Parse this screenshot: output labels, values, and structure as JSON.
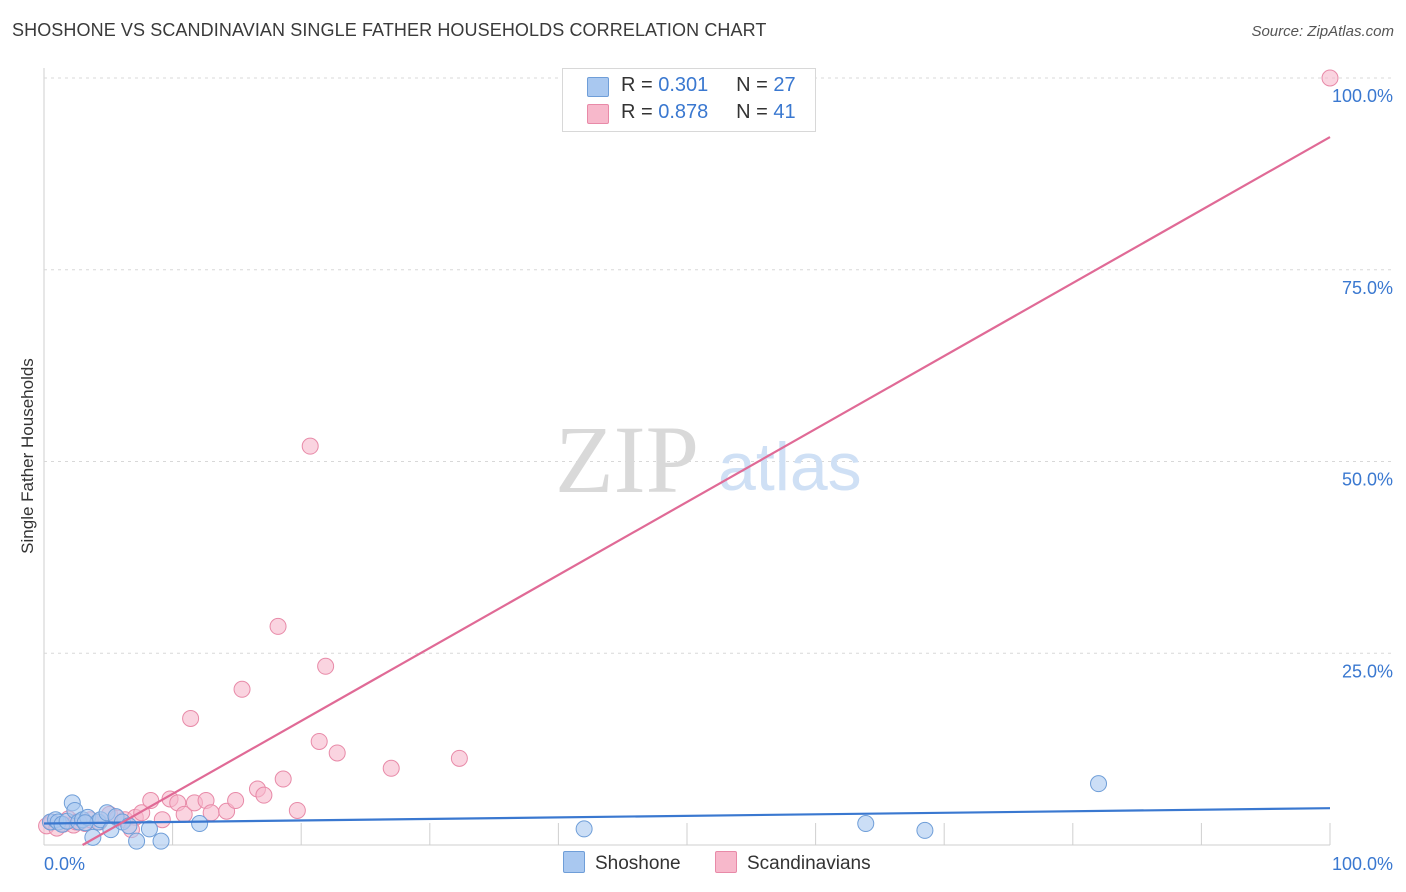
{
  "title": "SHOSHONE VS SCANDINAVIAN SINGLE FATHER HOUSEHOLDS CORRELATION CHART",
  "source": "Source: ZipAtlas.com",
  "watermark": {
    "zip": "ZIP",
    "atlas": "atlas"
  },
  "colors": {
    "shoshone_fill": "#a9c8f0",
    "shoshone_stroke": "#6f9ed8",
    "shoshone_line": "#3a78d0",
    "scand_fill": "#f7b8cb",
    "scand_stroke": "#e88aa8",
    "scand_line": "#e06a96",
    "axis_label": "#3a78d0",
    "grid": "#d8d8d8"
  },
  "legend": {
    "rows": [
      {
        "r_label": "R =",
        "r_value": "0.301",
        "n_label": "N =",
        "n_value": "27"
      },
      {
        "r_label": "R =",
        "r_value": "0.878",
        "n_label": "N =",
        "n_value": "41"
      }
    ]
  },
  "bottom_legend": {
    "shoshone": "Shoshone",
    "scandinavians": "Scandinavians"
  },
  "chart_data": {
    "type": "scatter",
    "title": "SHOSHONE VS SCANDINAVIAN SINGLE FATHER HOUSEHOLDS CORRELATION CHART",
    "xlabel": "",
    "ylabel": "Single Father Households",
    "xlim": [
      0,
      100
    ],
    "ylim": [
      0,
      100
    ],
    "x_tick_labels": [
      "0.0%",
      "100.0%"
    ],
    "y_ticks": [
      25,
      50,
      75,
      100
    ],
    "y_tick_labels": [
      "25.0%",
      "50.0%",
      "75.0%",
      "100.0%"
    ],
    "grid": true,
    "series": [
      {
        "name": "Shoshone",
        "r": 0.301,
        "n": 27,
        "trend": {
          "x": [
            0,
            100
          ],
          "y": [
            2.8,
            4.8
          ]
        },
        "points": [
          [
            0.5,
            3.0
          ],
          [
            0.9,
            3.3
          ],
          [
            1.1,
            3.0
          ],
          [
            1.4,
            2.7
          ],
          [
            1.8,
            3.1
          ],
          [
            2.2,
            5.5
          ],
          [
            2.4,
            4.5
          ],
          [
            2.7,
            3.0
          ],
          [
            3.0,
            3.3
          ],
          [
            3.4,
            3.6
          ],
          [
            3.8,
            1.0
          ],
          [
            4.2,
            3.0
          ],
          [
            4.4,
            3.3
          ],
          [
            4.9,
            4.2
          ],
          [
            5.2,
            2.0
          ],
          [
            5.6,
            3.7
          ],
          [
            6.1,
            3.0
          ],
          [
            6.6,
            2.5
          ],
          [
            7.2,
            0.5
          ],
          [
            8.2,
            2.1
          ],
          [
            9.1,
            0.5
          ],
          [
            12.1,
            2.8
          ],
          [
            42.0,
            2.1
          ],
          [
            63.9,
            2.8
          ],
          [
            68.5,
            1.9
          ],
          [
            82.0,
            8.0
          ],
          [
            3.2,
            2.9
          ]
        ]
      },
      {
        "name": "Scandinavians",
        "r": 0.878,
        "n": 41,
        "trend": {
          "x": [
            3.0,
            100.0
          ],
          "y": [
            0.0,
            92.3
          ]
        },
        "points": [
          [
            0.2,
            2.5
          ],
          [
            0.6,
            3.0
          ],
          [
            1.0,
            2.2
          ],
          [
            1.5,
            2.7
          ],
          [
            1.9,
            3.4
          ],
          [
            2.3,
            2.6
          ],
          [
            2.8,
            3.0
          ],
          [
            3.2,
            2.8
          ],
          [
            3.6,
            3.3
          ],
          [
            4.3,
            3.0
          ],
          [
            5.1,
            4.0
          ],
          [
            5.7,
            3.5
          ],
          [
            6.3,
            3.3
          ],
          [
            7.1,
            3.6
          ],
          [
            7.6,
            4.2
          ],
          [
            8.3,
            5.8
          ],
          [
            9.2,
            3.3
          ],
          [
            9.8,
            6.0
          ],
          [
            10.4,
            5.5
          ],
          [
            10.9,
            4.0
          ],
          [
            11.4,
            16.5
          ],
          [
            11.7,
            5.5
          ],
          [
            12.6,
            5.8
          ],
          [
            13.0,
            4.2
          ],
          [
            14.2,
            4.4
          ],
          [
            14.9,
            5.8
          ],
          [
            15.4,
            20.3
          ],
          [
            16.6,
            7.3
          ],
          [
            17.1,
            6.5
          ],
          [
            18.2,
            28.5
          ],
          [
            18.6,
            8.6
          ],
          [
            19.7,
            4.5
          ],
          [
            20.7,
            52.0
          ],
          [
            21.4,
            13.5
          ],
          [
            21.9,
            23.3
          ],
          [
            22.8,
            12.0
          ],
          [
            27.0,
            10.0
          ],
          [
            32.3,
            11.3
          ],
          [
            100.0,
            100.0
          ],
          [
            2.5,
            3.0
          ],
          [
            6.8,
            2.0
          ]
        ]
      }
    ]
  }
}
